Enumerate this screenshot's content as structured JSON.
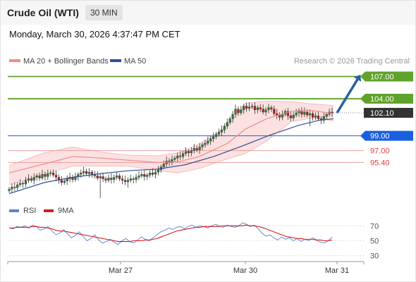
{
  "header": {
    "title": "Crude Oil (WTI)",
    "interval": "30 MIN",
    "datetime": "Monday, March 30, 2026 4:37:47 PM CET"
  },
  "legend": {
    "ma20_bb": "MA 20 + Bollinger Bands",
    "ma50": "MA 50",
    "copyright": "Research © 2026 Trading Central",
    "colors": {
      "ma20_bb": "#f28a8a",
      "ma50": "#2d4f8f"
    }
  },
  "rsi_legend": {
    "rsi": "RSI",
    "ma9": "9MA",
    "colors": {
      "rsi": "#5a82d6",
      "ma9": "#d41c1c"
    }
  },
  "levels": [
    {
      "value": 107.0,
      "label": "107.00",
      "kind": "target",
      "color": "#5fa32a"
    },
    {
      "value": 104.0,
      "label": "104.00",
      "kind": "resistance",
      "color": "#5fa32a"
    },
    {
      "value": 102.1,
      "label": "102.10",
      "kind": "last",
      "color": "#333333"
    },
    {
      "value": 99.0,
      "label": "99.00",
      "kind": "pivot",
      "color": "#1a5fe0"
    },
    {
      "value": 97.0,
      "label": "97.00",
      "kind": "support",
      "color": "#e04040"
    },
    {
      "value": 95.4,
      "label": "95.40",
      "kind": "support",
      "color": "#e04040"
    }
  ],
  "chart_data": {
    "type": "candlestick",
    "y_range": [
      90.5,
      108.0
    ],
    "x_ticks": [
      "Mar 27",
      "Mar 30",
      "Mar 31"
    ],
    "close_series": [
      91.8,
      92.1,
      92.0,
      92.4,
      92.6,
      92.5,
      93.0,
      93.2,
      93.0,
      93.4,
      93.6,
      93.3,
      93.8,
      93.5,
      93.9,
      94.0,
      93.7,
      93.4,
      93.0,
      92.7,
      92.9,
      93.2,
      93.4,
      93.1,
      93.5,
      93.8,
      94.0,
      94.2,
      93.9,
      94.1,
      93.8,
      93.6,
      93.3,
      93.5,
      93.2,
      93.0,
      93.3,
      93.1,
      93.4,
      93.6,
      93.2,
      93.0,
      92.8,
      93.0,
      93.2,
      93.1,
      93.4,
      93.6,
      93.8,
      93.5,
      93.7,
      94.0,
      93.8,
      94.1,
      94.4,
      94.8,
      95.2,
      95.6,
      95.4,
      95.8,
      96.0,
      96.3,
      96.2,
      96.6,
      96.9,
      96.7,
      97.0,
      97.3,
      97.1,
      97.5,
      97.8,
      98.0,
      98.3,
      98.6,
      98.9,
      99.2,
      99.5,
      99.8,
      100.3,
      100.8,
      101.3,
      101.9,
      102.6,
      102.1,
      102.5,
      103.0,
      102.7,
      102.9,
      103.0,
      102.5,
      102.8,
      102.6,
      102.2,
      102.5,
      102.8,
      102.6,
      102.0,
      101.8,
      101.5,
      101.9,
      102.3,
      101.7,
      101.4,
      101.8,
      102.1,
      102.4,
      101.9,
      102.2,
      101.8,
      102.0,
      101.5,
      101.7,
      101.3,
      101.1,
      101.6,
      101.9,
      102.2,
      102.1
    ],
    "ma20_bb_y": [
      [
        10,
        94.0
      ],
      [
        60,
        95.2
      ],
      [
        100,
        96.2
      ],
      [
        140,
        96.0
      ],
      [
        180,
        95.7
      ],
      [
        220,
        95.4
      ],
      [
        250,
        95.5
      ],
      [
        280,
        96.2
      ],
      [
        320,
        98.0
      ],
      [
        345,
        99.9
      ],
      [
        375,
        101.3
      ],
      [
        410,
        102.3
      ],
      [
        440,
        102.4
      ],
      [
        470,
        102.0
      ]
    ],
    "bb_upper_y": [
      [
        10,
        95.0
      ],
      [
        60,
        96.7
      ],
      [
        100,
        97.5
      ],
      [
        140,
        96.8
      ],
      [
        180,
        96.4
      ],
      [
        220,
        96.3
      ],
      [
        250,
        96.7
      ],
      [
        280,
        97.9
      ],
      [
        320,
        100.3
      ],
      [
        345,
        103.4
      ],
      [
        375,
        103.7
      ],
      [
        410,
        103.6
      ],
      [
        440,
        103.3
      ],
      [
        470,
        103.1
      ]
    ],
    "bb_lower_y": [
      [
        10,
        92.4
      ],
      [
        60,
        93.8
      ],
      [
        100,
        94.9
      ],
      [
        140,
        94.9
      ],
      [
        180,
        94.9
      ],
      [
        220,
        94.3
      ],
      [
        250,
        94.0
      ],
      [
        280,
        94.6
      ],
      [
        320,
        95.9
      ],
      [
        345,
        96.6
      ],
      [
        375,
        98.3
      ],
      [
        410,
        100.9
      ],
      [
        440,
        101.4
      ],
      [
        470,
        101.0
      ]
    ],
    "ma50_y": [
      [
        10,
        91.2
      ],
      [
        60,
        92.7
      ],
      [
        100,
        93.4
      ],
      [
        140,
        93.9
      ],
      [
        180,
        94.3
      ],
      [
        220,
        94.5
      ],
      [
        260,
        95.1
      ],
      [
        300,
        96.2
      ],
      [
        340,
        97.6
      ],
      [
        380,
        99.1
      ],
      [
        420,
        100.4
      ],
      [
        450,
        101.1
      ],
      [
        470,
        101.3
      ]
    ],
    "rsi": {
      "y_range": [
        25,
        75
      ],
      "ticks": [
        70,
        50,
        30
      ],
      "rsi_values": [
        67,
        66,
        69,
        68,
        70,
        67,
        71,
        69,
        64,
        66,
        69,
        63,
        58,
        60,
        65,
        59,
        54,
        57,
        62,
        56,
        50,
        53,
        58,
        51,
        47,
        49,
        52,
        48,
        45,
        50,
        53,
        49,
        47,
        51,
        55,
        52,
        50,
        54,
        58,
        62,
        64,
        67,
        65,
        68,
        69,
        66,
        69,
        71,
        68,
        70,
        69,
        67,
        70,
        72,
        70,
        68,
        71,
        69,
        68,
        70,
        74,
        72,
        69,
        71,
        66,
        60,
        56,
        58,
        54,
        51,
        55,
        52,
        54,
        50,
        53,
        49,
        52,
        50,
        54,
        51,
        48,
        47,
        50,
        55
      ],
      "ma9_values": [
        67,
        67,
        68,
        68,
        68,
        68,
        69,
        69,
        68,
        68,
        67,
        66,
        64,
        63,
        63,
        62,
        61,
        60,
        59,
        58,
        57,
        56,
        55,
        54,
        53,
        52,
        51,
        50,
        49,
        49,
        49,
        49,
        50,
        50,
        50,
        51,
        51,
        52,
        53,
        55,
        57,
        59,
        61,
        63,
        64,
        65,
        66,
        67,
        68,
        68,
        69,
        69,
        69,
        69,
        69,
        70,
        70,
        70,
        70,
        70,
        70,
        71,
        70,
        70,
        69,
        68,
        66,
        64,
        62,
        60,
        58,
        56,
        55,
        54,
        53,
        53,
        52,
        52,
        52,
        51,
        51,
        50,
        50,
        51
      ]
    }
  }
}
